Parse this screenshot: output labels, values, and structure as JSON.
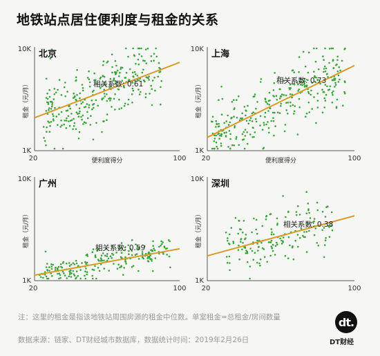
{
  "title": "地铁站点居住便利度与租金的关系",
  "note": "注：这里的租金是指该地铁站周围房源的租金中位数。单室租金=总租金/房间数量",
  "source": "数据来源：链家、DT财经城市数据库，数据统计时间：2019年2月26日",
  "logo": {
    "mark": "dt.",
    "text": "DT财经"
  },
  "colors": {
    "point": "#3aa43a",
    "trend": "#d99a2b",
    "axis": "#555555"
  },
  "chart_data": [
    {
      "type": "scatter",
      "city": "北京",
      "xlabel": "便利度得分",
      "ylabel": "租金（元/月）",
      "xticks": [
        "20",
        "100"
      ],
      "yticks": [
        "1K",
        "10K"
      ],
      "xlim": [
        20,
        100
      ],
      "ylim_log10": [
        3,
        4
      ],
      "correlation_label": "相关系数: 0.61",
      "trend": {
        "x": [
          20,
          100
        ],
        "y": [
          2100,
          7300
        ]
      },
      "n_points": 300,
      "seed": 11,
      "x_range": [
        25,
        90
      ],
      "noise": 0.17
    },
    {
      "type": "scatter",
      "city": "上海",
      "xlabel": "便利度得分",
      "ylabel": "租金（元/月）",
      "xticks": [
        "20",
        "100"
      ],
      "yticks": [
        "1K",
        "10K"
      ],
      "xlim": [
        20,
        100
      ],
      "ylim_log10": [
        3,
        4
      ],
      "correlation_label": "相关系数: 0.73",
      "trend": {
        "x": [
          20,
          100
        ],
        "y": [
          1350,
          6800
        ]
      },
      "n_points": 320,
      "seed": 23,
      "x_range": [
        22,
        95
      ],
      "noise": 0.15
    },
    {
      "type": "scatter",
      "city": "广州",
      "xlabel": "",
      "ylabel": "租金（元/月）",
      "xticks": [
        "20",
        "100"
      ],
      "yticks": [
        "1K",
        "10K"
      ],
      "xlim": [
        20,
        100
      ],
      "ylim_log10": [
        3,
        4
      ],
      "correlation_label": "相关系数: 0.59",
      "trend": {
        "x": [
          20,
          100
        ],
        "y": [
          1130,
          2050
        ]
      },
      "n_points": 230,
      "seed": 37,
      "x_range": [
        22,
        95
      ],
      "noise": 0.07
    },
    {
      "type": "scatter",
      "city": "深圳",
      "xlabel": "",
      "ylabel": "租金（元/月）",
      "xticks": [
        "20",
        "100"
      ],
      "yticks": [
        "1K",
        "10K"
      ],
      "xlim": [
        20,
        100
      ],
      "ylim_log10": [
        3,
        4
      ],
      "correlation_label": "相关系数: 0.38",
      "trend": {
        "x": [
          20,
          100
        ],
        "y": [
          1750,
          4300
        ]
      },
      "n_points": 170,
      "seed": 51,
      "x_range": [
        30,
        88
      ],
      "noise": 0.13
    }
  ]
}
